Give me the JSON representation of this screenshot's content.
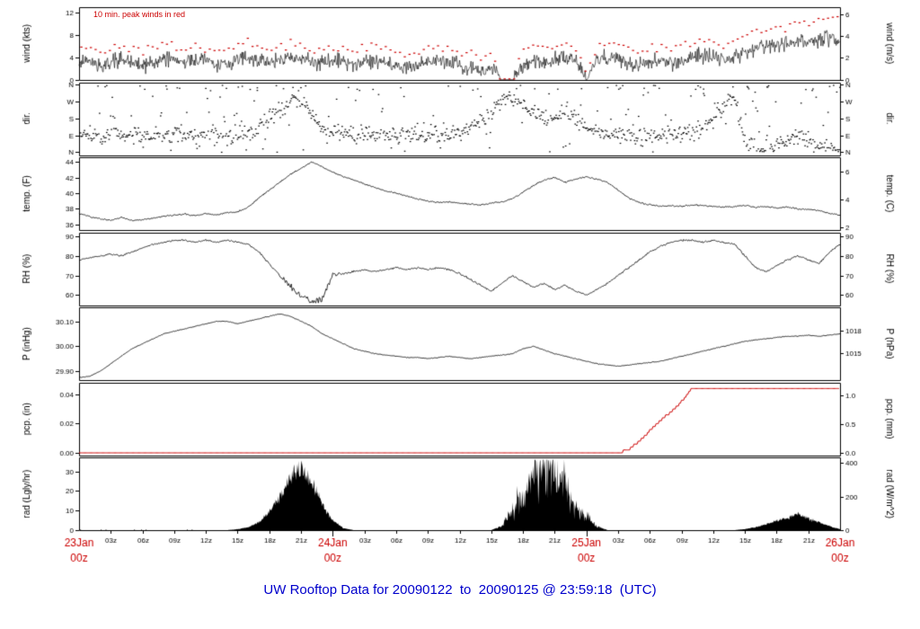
{
  "caption": "UW Rooftop Data for 20090122  to  20090125 @ 23:59:18  (UTC)",
  "wind_annotation": "10 min. peak winds in red",
  "noise_seed": 20090125,
  "colors": {
    "series_black": "#000000",
    "peak_red": "#cc0000",
    "day_label_red": "#cc0000",
    "caption_blue": "#0000cc",
    "background": "#ffffff"
  },
  "x_axis": {
    "start": "23Jan 00z",
    "end": "26Jan 00z",
    "hours_total": 72,
    "minor_tick_hours": 3,
    "hour_labels": [
      "03z",
      "06z",
      "09z",
      "12z",
      "15z",
      "18z",
      "21z"
    ],
    "day_labels": [
      {
        "hour": 0,
        "line1": "23Jan",
        "line2": "00z"
      },
      {
        "hour": 24,
        "line1": "24Jan",
        "line2": "00z"
      },
      {
        "hour": 48,
        "line1": "25Jan",
        "line2": "00z"
      },
      {
        "hour": 72,
        "line1": "26Jan",
        "line2": "00z"
      }
    ]
  },
  "panels": [
    {
      "id": "wind",
      "left_label": "wind (kts)",
      "right_label": "wind (m/s)",
      "ymin": 0,
      "ymax": 13,
      "left_ticks": [
        {
          "v": 0,
          "l": "0"
        },
        {
          "v": 4,
          "l": "4"
        },
        {
          "v": 8,
          "l": "8"
        },
        {
          "v": 12,
          "l": "12"
        }
      ],
      "right_ticks": [
        {
          "v": 0,
          "l": "0"
        },
        {
          "v": 3.89,
          "l": "2"
        },
        {
          "v": 7.78,
          "l": "4"
        },
        {
          "v": 11.66,
          "l": "6"
        }
      ]
    },
    {
      "id": "dir",
      "left_label": "dir.",
      "right_label": "dir.",
      "ymin": -0.15,
      "ymax": 4.15,
      "left_ticks": [
        {
          "v": 0,
          "l": "N"
        },
        {
          "v": 1,
          "l": "E"
        },
        {
          "v": 2,
          "l": "S"
        },
        {
          "v": 3,
          "l": "W"
        },
        {
          "v": 4,
          "l": "N"
        }
      ],
      "right_ticks": [
        {
          "v": 0,
          "l": "N"
        },
        {
          "v": 1,
          "l": "E"
        },
        {
          "v": 2,
          "l": "S"
        },
        {
          "v": 3,
          "l": "W"
        },
        {
          "v": 4,
          "l": "N"
        }
      ]
    },
    {
      "id": "temp",
      "left_label": "temp. (F)",
      "right_label": "temp. (C)",
      "ymin": 35.3,
      "ymax": 44.6,
      "left_ticks": [
        {
          "v": 36,
          "l": "36"
        },
        {
          "v": 38,
          "l": "38"
        },
        {
          "v": 40,
          "l": "40"
        },
        {
          "v": 42,
          "l": "42"
        },
        {
          "v": 44,
          "l": "44"
        }
      ],
      "right_ticks": [
        {
          "v": 35.6,
          "l": "2"
        },
        {
          "v": 39.2,
          "l": "4"
        },
        {
          "v": 42.8,
          "l": "6"
        }
      ]
    },
    {
      "id": "rh",
      "left_label": "RH (%)",
      "right_label": "RH (%)",
      "ymin": 55,
      "ymax": 92,
      "left_ticks": [
        {
          "v": 60,
          "l": "60"
        },
        {
          "v": 70,
          "l": "70"
        },
        {
          "v": 80,
          "l": "80"
        },
        {
          "v": 90,
          "l": "90"
        }
      ],
      "right_ticks": [
        {
          "v": 60,
          "l": "60"
        },
        {
          "v": 70,
          "l": "70"
        },
        {
          "v": 80,
          "l": "80"
        },
        {
          "v": 90,
          "l": "90"
        }
      ]
    },
    {
      "id": "pres",
      "left_label": "P (inHg)",
      "right_label": "P (hPa)",
      "ymin": 29.865,
      "ymax": 30.155,
      "left_ticks": [
        {
          "v": 29.9,
          "l": "29.90"
        },
        {
          "v": 30.0,
          "l": "30.00"
        },
        {
          "v": 30.1,
          "l": "30.10"
        }
      ],
      "right_ticks": [
        {
          "v": 29.973,
          "l": "1015"
        },
        {
          "v": 30.062,
          "l": "1018"
        }
      ]
    },
    {
      "id": "pcp",
      "left_label": "pcp. (in)",
      "right_label": "pcp. (mm)",
      "ymin": -0.0015,
      "ymax": 0.048,
      "left_ticks": [
        {
          "v": 0,
          "l": "0.00"
        },
        {
          "v": 0.02,
          "l": "0.02"
        },
        {
          "v": 0.04,
          "l": "0.04"
        }
      ],
      "right_ticks": [
        {
          "v": 0,
          "l": "0.0"
        },
        {
          "v": 0.0197,
          "l": "0.5"
        },
        {
          "v": 0.0394,
          "l": "1.0"
        }
      ]
    },
    {
      "id": "rad",
      "left_label": "rad (Lgly/hr)",
      "right_label": "rad (W/m^2)",
      "ymin": 0,
      "ymax": 37,
      "left_ticks": [
        {
          "v": 0,
          "l": "0"
        },
        {
          "v": 10,
          "l": "10"
        },
        {
          "v": 20,
          "l": "20"
        },
        {
          "v": 30,
          "l": "30"
        }
      ],
      "right_ticks": [
        {
          "v": 0,
          "l": "0"
        },
        {
          "v": 17.19,
          "l": "200"
        },
        {
          "v": 34.39,
          "l": "400"
        }
      ]
    }
  ],
  "chart_data": {
    "type": "multi-panel-timeseries",
    "title": "UW Rooftop Data for 20090122  to  20090125 @ 23:59:18  (UTC)",
    "x_unit": "hours since 23 Jan 00z (UTC)",
    "x_range": [
      0,
      72
    ],
    "sample_interval_hours": 1,
    "direction_scale_note": "0=N, 1=E, 2=S, 3=W, 4=N",
    "series": {
      "wind_mean_kts": [
        3,
        3.5,
        2.5,
        3,
        3.5,
        3,
        2.5,
        3,
        4,
        3.5,
        3,
        3.5,
        3,
        2.5,
        3,
        3.5,
        4,
        3.5,
        3,
        3.5,
        4,
        3.5,
        3,
        3,
        3.5,
        3,
        2.5,
        3,
        3.5,
        3,
        2.5,
        2,
        2.5,
        3,
        3.5,
        3,
        2.5,
        2,
        1.5,
        2,
        0.5,
        0.4,
        2.5,
        3.5,
        3,
        3.5,
        4,
        3.5,
        0.6,
        3.5,
        4,
        3.5,
        3,
        2.5,
        3,
        3.5,
        3,
        3.5,
        4,
        4.5,
        4,
        3.5,
        4,
        5,
        5.5,
        6,
        6.5,
        6,
        7,
        6.5,
        7,
        7.5,
        7
      ],
      "wind_peak_kts": [
        5.5,
        6,
        5,
        5.5,
        6,
        5.5,
        5,
        5.5,
        6.5,
        6,
        5.5,
        6,
        5.5,
        5,
        5.5,
        6,
        6.5,
        6,
        5.5,
        6,
        6.5,
        6,
        5.5,
        5.5,
        6,
        5.5,
        5,
        5.5,
        6,
        5.5,
        5,
        4.5,
        5,
        5.5,
        6,
        5.5,
        5,
        4.5,
        4,
        4.5,
        0.8,
        0.8,
        5,
        6,
        5.5,
        6,
        6.5,
        6,
        1,
        6,
        6.5,
        6,
        5.5,
        5,
        5.5,
        6,
        5.5,
        6,
        6.5,
        7,
        6.5,
        6,
        7,
        8,
        8.5,
        9,
        9.5,
        9,
        10.5,
        10,
        10.5,
        11.5,
        11
      ],
      "wind_dir_center": [
        0.9,
        1.0,
        0.9,
        1.0,
        1.1,
        1.0,
        0.9,
        1.0,
        1.0,
        1.1,
        1.0,
        1.0,
        1.1,
        1.0,
        1.0,
        1.0,
        1.2,
        1.5,
        2.0,
        2.5,
        3.0,
        3.2,
        2.2,
        1.5,
        1.2,
        1.1,
        1.0,
        1.0,
        1.1,
        1.0,
        1.0,
        1.1,
        1.0,
        1.0,
        1.0,
        1.1,
        1.2,
        1.5,
        2.0,
        2.5,
        3.0,
        3.2,
        2.8,
        2.4,
        2.0,
        2.2,
        2.4,
        2.0,
        1.5,
        1.2,
        1.0,
        1.0,
        1.1,
        1.0,
        1.0,
        1.0,
        1.1,
        1.0,
        1.2,
        1.5,
        2.0,
        3.0,
        3.4,
        0.5,
        0.3,
        0.2,
        0.5,
        0.8,
        1.0,
        0.8,
        0.5,
        0.3,
        0.2
      ],
      "temp_f": [
        37.4,
        37.0,
        36.7,
        36.5,
        36.9,
        36.5,
        36.6,
        36.8,
        37.0,
        37.2,
        37.3,
        37.1,
        37.4,
        37.2,
        37.5,
        37.6,
        38.2,
        39.4,
        40.4,
        41.4,
        42.4,
        43.2,
        44.0,
        43.4,
        42.7,
        42.1,
        41.7,
        41.2,
        40.7,
        40.3,
        40.0,
        39.6,
        39.3,
        39.0,
        38.8,
        38.9,
        38.7,
        38.6,
        38.5,
        38.7,
        38.9,
        39.3,
        40.1,
        41.0,
        41.7,
        42.0,
        41.4,
        41.8,
        42.1,
        41.8,
        41.4,
        40.4,
        39.4,
        38.8,
        38.5,
        38.3,
        38.4,
        38.3,
        38.5,
        38.4,
        38.3,
        38.2,
        38.3,
        38.4,
        38.2,
        38.3,
        38.1,
        38.2,
        38.0,
        37.9,
        37.8,
        37.4,
        37.2
      ],
      "rh_pct": [
        78,
        79,
        80,
        81,
        80,
        82,
        84,
        86,
        87,
        88,
        88,
        87,
        88,
        87,
        88,
        87,
        86,
        82,
        76,
        70,
        64,
        59,
        57,
        58,
        70,
        71,
        72,
        73,
        72,
        73,
        74,
        73,
        74,
        73,
        74,
        73,
        71,
        68,
        65,
        62,
        66,
        70,
        67,
        64,
        66,
        63,
        65,
        62,
        60,
        63,
        66,
        70,
        74,
        78,
        82,
        85,
        87,
        88,
        88,
        87,
        88,
        87,
        86,
        80,
        74,
        72,
        75,
        78,
        80,
        78,
        76,
        82,
        86
      ],
      "pressure_inhg": [
        29.875,
        29.88,
        29.9,
        29.93,
        29.96,
        29.99,
        30.01,
        30.03,
        30.05,
        30.06,
        30.07,
        30.08,
        30.09,
        30.1,
        30.1,
        30.09,
        30.1,
        30.11,
        30.12,
        30.13,
        30.12,
        30.1,
        30.08,
        30.05,
        30.03,
        30.01,
        29.99,
        29.98,
        29.97,
        29.965,
        29.96,
        29.955,
        29.955,
        29.95,
        29.955,
        29.96,
        29.955,
        29.95,
        29.955,
        29.96,
        29.965,
        29.97,
        29.99,
        30.0,
        29.985,
        29.97,
        29.96,
        29.95,
        29.94,
        29.93,
        29.925,
        29.92,
        29.925,
        29.93,
        29.935,
        29.94,
        29.95,
        29.96,
        29.97,
        29.98,
        29.99,
        30.0,
        30.01,
        30.02,
        30.025,
        30.03,
        30.035,
        30.04,
        30.04,
        30.045,
        30.04,
        30.045,
        30.05
      ],
      "precip_in": [
        0,
        0,
        0,
        0,
        0,
        0,
        0,
        0,
        0,
        0,
        0,
        0,
        0,
        0,
        0,
        0,
        0,
        0,
        0,
        0,
        0,
        0,
        0,
        0,
        0,
        0,
        0,
        0,
        0,
        0,
        0,
        0,
        0,
        0,
        0,
        0,
        0,
        0,
        0,
        0,
        0,
        0,
        0,
        0,
        0,
        0,
        0,
        0,
        0,
        0,
        0,
        0,
        0.002,
        0.008,
        0.015,
        0.022,
        0.028,
        0.035,
        0.044,
        0.044,
        0.044,
        0.044,
        0.044,
        0.044,
        0.044,
        0.044,
        0.044,
        0.044,
        0.044,
        0.044,
        0.044,
        0.044,
        0.044
      ],
      "radiation_lgly_hr": [
        0,
        0,
        0,
        0,
        0,
        0,
        0,
        0,
        0,
        0,
        0,
        0,
        0,
        0,
        0,
        0.5,
        1.5,
        4,
        9,
        17,
        27,
        33,
        24,
        13,
        5,
        1,
        0,
        0,
        0,
        0,
        0,
        0,
        0,
        0,
        0,
        0,
        0,
        0,
        0,
        0,
        2,
        10,
        18,
        26,
        35,
        30,
        22,
        12,
        7,
        2,
        0,
        0,
        0,
        0,
        0,
        0,
        0,
        0,
        0,
        0,
        0,
        0,
        0,
        0.5,
        1.5,
        3,
        5,
        6.5,
        8,
        6,
        4,
        2,
        0.5
      ]
    }
  }
}
